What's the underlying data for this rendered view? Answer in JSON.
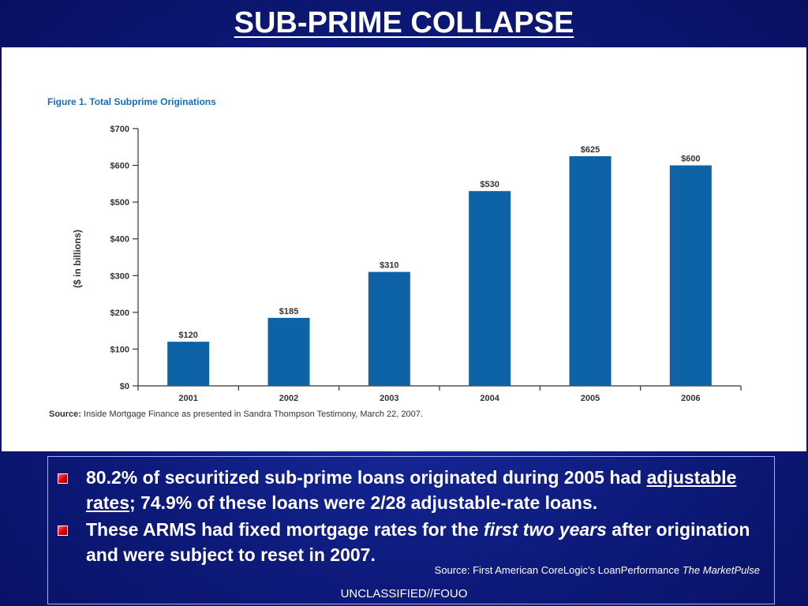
{
  "slide": {
    "title": "SUB-PRIME COLLAPSE",
    "classification": "UNCLASSIFIED//FOUO",
    "source_prefix": "Source: First American CoreLogic’s  LoanPerformance ",
    "source_italic": "The MarketPulse"
  },
  "bullets": [
    {
      "part1": "80.2% of securitized sub-prime loans originated during 2005 had ",
      "underlined": "adjustable rates",
      "part2": "; 74.9% of these loans were 2/28 adjustable-rate loans."
    },
    {
      "part1": "These ARMS had fixed mortgage rates for the ",
      "italic": "first two years",
      "part2": " after origination and were subject to reset in 2007."
    }
  ],
  "chart_data": {
    "type": "bar",
    "title": "Figure 1. Total Subprime Originations",
    "ylabel": "($ in billions)",
    "xlabel": "",
    "categories": [
      "2001",
      "2002",
      "2003",
      "2004",
      "2005",
      "2006"
    ],
    "values": [
      120,
      185,
      310,
      530,
      625,
      600
    ],
    "data_labels": [
      "$120",
      "$185",
      "$310",
      "$530",
      "$625",
      "$600"
    ],
    "ylim": [
      0,
      700
    ],
    "yticks": [
      0,
      100,
      200,
      300,
      400,
      500,
      600,
      700
    ],
    "ytick_labels": [
      "$0",
      "$100",
      "$200",
      "$300",
      "$400",
      "$500",
      "$600",
      "$700"
    ],
    "grid": false,
    "bar_color": "#0d63a5",
    "source_label": "Source:",
    "source_text": " Inside Mortgage Finance as presented in Sandra Thompson Testimony, March 22, 2007."
  }
}
